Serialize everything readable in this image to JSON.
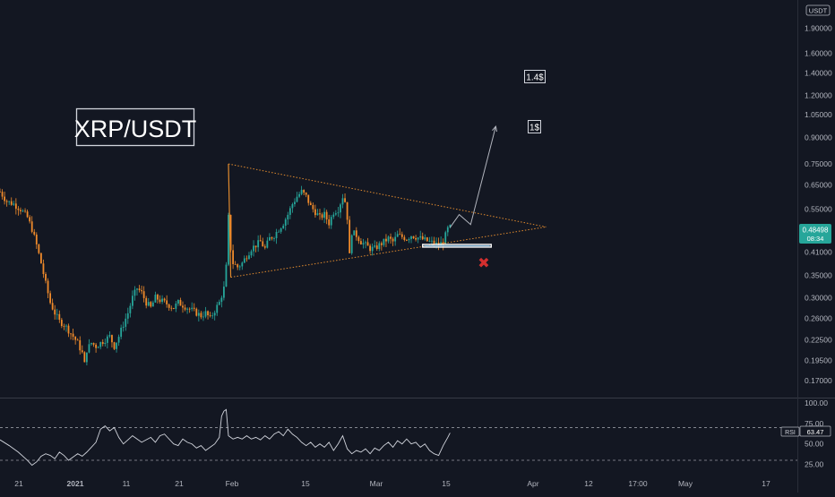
{
  "symbol_badge": "USDT",
  "colors": {
    "background": "#131722",
    "up": "#26a69a",
    "down": "#ef8a2b",
    "triangle": "#e08a2e",
    "rsi": "#d1d4dc",
    "axis_text": "#b2b5be",
    "price_tag": "#26a69a",
    "cross": "#d32f2f"
  },
  "chart_data": [
    {
      "type": "candlestick",
      "title": "XRP/USDT",
      "scale": "log",
      "ylim": [
        0.155,
        2.25
      ],
      "y_ticks": [
        "1.90000",
        "1.60000",
        "1.40000",
        "1.20000",
        "1.05000",
        "0.90000",
        "0.75000",
        "0.65000",
        "0.55000",
        "0.48498",
        "0.41000",
        "0.35000",
        "0.30000",
        "0.26000",
        "0.22500",
        "0.19500",
        "0.17000"
      ],
      "x_ticks": [
        "21",
        "2021",
        "11",
        "21",
        "Feb",
        "15",
        "Mar",
        "15",
        "Apr",
        "12",
        "17:00",
        "May",
        "17"
      ],
      "last_price": "0.48498",
      "countdown": "08:34",
      "annotations": {
        "targets": [
          "1.4$",
          "1$"
        ],
        "stop": "✖"
      },
      "price_path": [
        [
          0,
          0.62
        ],
        [
          3,
          0.58
        ],
        [
          6,
          0.57
        ],
        [
          9,
          0.55
        ],
        [
          12,
          0.52
        ],
        [
          14,
          0.48
        ],
        [
          16,
          0.43
        ],
        [
          18,
          0.38
        ],
        [
          20,
          0.33
        ],
        [
          22,
          0.29
        ],
        [
          24,
          0.27
        ],
        [
          26,
          0.255
        ],
        [
          28,
          0.25
        ],
        [
          30,
          0.24
        ],
        [
          32,
          0.23
        ],
        [
          34,
          0.22
        ],
        [
          36,
          0.205
        ],
        [
          37,
          0.19
        ],
        [
          38,
          0.21
        ],
        [
          40,
          0.22
        ],
        [
          42,
          0.215
        ],
        [
          44,
          0.22
        ],
        [
          46,
          0.225
        ],
        [
          48,
          0.23
        ],
        [
          50,
          0.215
        ],
        [
          52,
          0.23
        ],
        [
          54,
          0.25
        ],
        [
          56,
          0.27
        ],
        [
          58,
          0.3
        ],
        [
          60,
          0.32
        ],
        [
          62,
          0.31
        ],
        [
          64,
          0.29
        ],
        [
          66,
          0.28
        ],
        [
          68,
          0.3
        ],
        [
          70,
          0.295
        ],
        [
          72,
          0.29
        ],
        [
          74,
          0.285
        ],
        [
          76,
          0.28
        ],
        [
          78,
          0.29
        ],
        [
          80,
          0.285
        ],
        [
          82,
          0.28
        ],
        [
          84,
          0.275
        ],
        [
          86,
          0.27
        ],
        [
          88,
          0.265
        ],
        [
          90,
          0.27
        ],
        [
          92,
          0.26
        ],
        [
          94,
          0.275
        ],
        [
          96,
          0.29
        ],
        [
          98,
          0.32
        ],
        [
          99,
          0.37
        ],
        [
          100,
          0.52
        ],
        [
          101,
          0.42
        ],
        [
          102,
          0.38
        ],
        [
          104,
          0.37
        ],
        [
          106,
          0.38
        ],
        [
          108,
          0.4
        ],
        [
          110,
          0.42
        ],
        [
          112,
          0.43
        ],
        [
          114,
          0.44
        ],
        [
          116,
          0.42
        ],
        [
          118,
          0.45
        ],
        [
          120,
          0.46
        ],
        [
          122,
          0.48
        ],
        [
          124,
          0.5
        ],
        [
          126,
          0.53
        ],
        [
          128,
          0.57
        ],
        [
          130,
          0.6
        ],
        [
          132,
          0.62
        ],
        [
          134,
          0.6
        ],
        [
          136,
          0.56
        ],
        [
          138,
          0.54
        ],
        [
          140,
          0.52
        ],
        [
          142,
          0.53
        ],
        [
          144,
          0.5
        ],
        [
          146,
          0.54
        ],
        [
          148,
          0.55
        ],
        [
          150,
          0.6
        ],
        [
          151,
          0.58
        ],
        [
          152,
          0.52
        ],
        [
          153,
          0.4
        ],
        [
          154,
          0.47
        ],
        [
          156,
          0.46
        ],
        [
          158,
          0.44
        ],
        [
          160,
          0.43
        ],
        [
          162,
          0.42
        ],
        [
          164,
          0.42
        ],
        [
          166,
          0.43
        ],
        [
          168,
          0.44
        ],
        [
          170,
          0.45
        ],
        [
          172,
          0.44
        ],
        [
          174,
          0.46
        ],
        [
          176,
          0.455
        ],
        [
          178,
          0.45
        ],
        [
          180,
          0.46
        ],
        [
          182,
          0.455
        ],
        [
          184,
          0.45
        ],
        [
          186,
          0.445
        ],
        [
          188,
          0.44
        ],
        [
          190,
          0.435
        ],
        [
          192,
          0.43
        ],
        [
          194,
          0.44
        ],
        [
          196,
          0.48
        ],
        [
          197,
          0.485
        ]
      ],
      "triangle": {
        "apex_top": [
          100,
          0.75
        ],
        "apex_bottom": [
          101,
          0.345
        ],
        "tip": [
          239,
          0.487
        ],
        "upper_through": [
          150,
          0.62
        ],
        "lower_through": [
          197,
          0.43
        ]
      },
      "support_box": [
        [
          185,
          0.425
        ],
        [
          215,
          0.432
        ]
      ],
      "projection": [
        [
          197,
          0.485
        ],
        [
          201,
          0.53
        ],
        [
          206,
          0.495
        ],
        [
          217,
          0.97
        ]
      ]
    },
    {
      "type": "line",
      "title": "RSI",
      "value": "63.47",
      "ylim": [
        18,
        100
      ],
      "y_ticks": [
        "100.00",
        "75.00",
        "50.00",
        "25.00"
      ],
      "bands": [
        70,
        30
      ],
      "values": [
        [
          0,
          55
        ],
        [
          4,
          48
        ],
        [
          8,
          40
        ],
        [
          12,
          30
        ],
        [
          14,
          24
        ],
        [
          16,
          28
        ],
        [
          18,
          35
        ],
        [
          20,
          38
        ],
        [
          22,
          36
        ],
        [
          24,
          32
        ],
        [
          26,
          40
        ],
        [
          28,
          36
        ],
        [
          30,
          30
        ],
        [
          32,
          34
        ],
        [
          34,
          38
        ],
        [
          36,
          35
        ],
        [
          38,
          40
        ],
        [
          40,
          46
        ],
        [
          42,
          52
        ],
        [
          44,
          68
        ],
        [
          46,
          72
        ],
        [
          48,
          66
        ],
        [
          50,
          70
        ],
        [
          52,
          58
        ],
        [
          54,
          50
        ],
        [
          56,
          55
        ],
        [
          58,
          60
        ],
        [
          60,
          56
        ],
        [
          62,
          52
        ],
        [
          64,
          55
        ],
        [
          66,
          58
        ],
        [
          68,
          52
        ],
        [
          70,
          60
        ],
        [
          72,
          62
        ],
        [
          74,
          56
        ],
        [
          76,
          50
        ],
        [
          78,
          48
        ],
        [
          80,
          56
        ],
        [
          82,
          52
        ],
        [
          84,
          50
        ],
        [
          86,
          45
        ],
        [
          88,
          48
        ],
        [
          90,
          42
        ],
        [
          92,
          46
        ],
        [
          94,
          50
        ],
        [
          96,
          58
        ],
        [
          97,
          84
        ],
        [
          98,
          90
        ],
        [
          99,
          92
        ],
        [
          100,
          60
        ],
        [
          102,
          56
        ],
        [
          104,
          58
        ],
        [
          106,
          56
        ],
        [
          108,
          60
        ],
        [
          110,
          56
        ],
        [
          112,
          58
        ],
        [
          114,
          55
        ],
        [
          116,
          60
        ],
        [
          118,
          56
        ],
        [
          120,
          62
        ],
        [
          122,
          65
        ],
        [
          124,
          60
        ],
        [
          126,
          68
        ],
        [
          128,
          62
        ],
        [
          130,
          58
        ],
        [
          132,
          52
        ],
        [
          134,
          48
        ],
        [
          136,
          52
        ],
        [
          138,
          46
        ],
        [
          140,
          50
        ],
        [
          142,
          46
        ],
        [
          144,
          52
        ],
        [
          146,
          42
        ],
        [
          148,
          50
        ],
        [
          150,
          60
        ],
        [
          152,
          44
        ],
        [
          154,
          38
        ],
        [
          156,
          42
        ],
        [
          158,
          40
        ],
        [
          160,
          44
        ],
        [
          162,
          38
        ],
        [
          164,
          45
        ],
        [
          166,
          42
        ],
        [
          168,
          48
        ],
        [
          170,
          52
        ],
        [
          172,
          46
        ],
        [
          174,
          54
        ],
        [
          176,
          50
        ],
        [
          178,
          56
        ],
        [
          180,
          50
        ],
        [
          182,
          52
        ],
        [
          184,
          46
        ],
        [
          186,
          50
        ],
        [
          188,
          42
        ],
        [
          190,
          38
        ],
        [
          192,
          36
        ],
        [
          194,
          48
        ],
        [
          196,
          58
        ],
        [
          197,
          63.47
        ]
      ]
    }
  ]
}
